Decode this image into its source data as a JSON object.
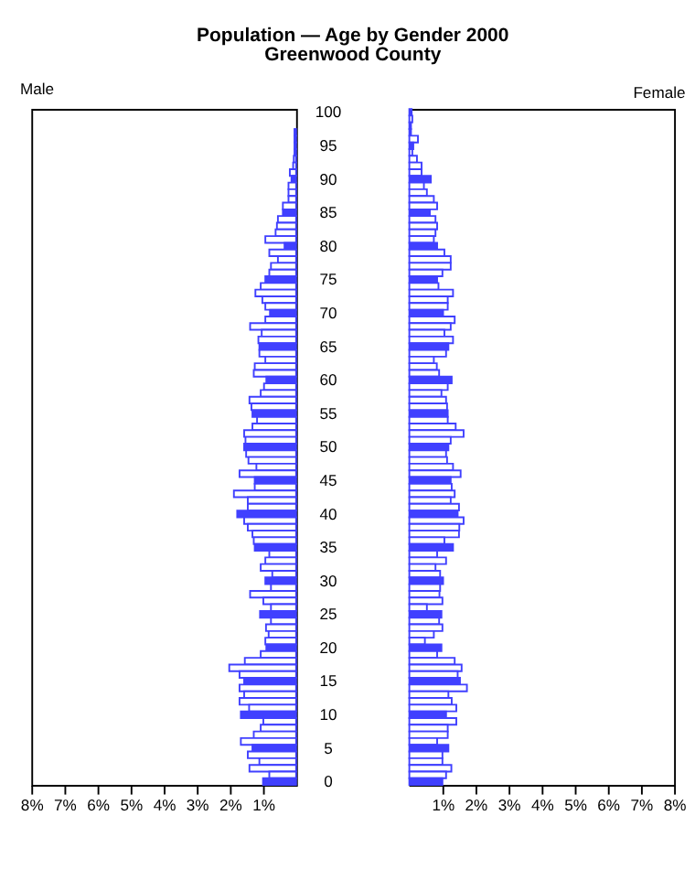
{
  "chart_data": [
    {
      "type": "bar",
      "title": "Population — Age by Gender 2000",
      "subtitle": "Greenwood County",
      "orientation": "horizontal",
      "categories": [
        "100",
        null,
        null,
        null,
        null,
        "95",
        null,
        null,
        null,
        null,
        "90",
        null,
        null,
        null,
        null,
        "85",
        null,
        null,
        null,
        null,
        "80",
        null,
        null,
        null,
        null,
        "75",
        null,
        null,
        null,
        null,
        "70",
        null,
        null,
        null,
        null,
        "65",
        null,
        null,
        null,
        null,
        "60",
        null,
        null,
        null,
        null,
        "55",
        null,
        null,
        null,
        null,
        "50",
        null,
        null,
        null,
        null,
        "45",
        null,
        null,
        null,
        null,
        "40",
        null,
        null,
        null,
        null,
        "35",
        null,
        null,
        null,
        null,
        "30",
        null,
        null,
        null,
        null,
        "25",
        null,
        null,
        null,
        null,
        "20",
        null,
        null,
        null,
        null,
        "15",
        null,
        null,
        null,
        null,
        "10",
        null,
        null,
        null,
        null,
        "5",
        null,
        null,
        null,
        null,
        "0"
      ],
      "series": [
        {
          "name": "Male",
          "color": "#4040ff",
          "colors": [
            "#4040ff",
            "#ffffff",
            "#ffffff",
            "#ffffff",
            "#ffffff",
            "#4040ff",
            "#ffffff",
            "#ffffff",
            "#ffffff",
            "#ffffff",
            "#4040ff",
            "#ffffff",
            "#ffffff",
            "#ffffff",
            "#ffffff",
            "#4040ff",
            "#ffffff",
            "#ffffff",
            "#ffffff",
            "#ffffff",
            "#4040ff",
            "#ffffff",
            "#ffffff",
            "#ffffff",
            "#ffffff",
            "#4040ff",
            "#ffffff",
            "#ffffff",
            "#ffffff",
            "#ffffff",
            "#4040ff",
            "#ffffff",
            "#ffffff",
            "#ffffff",
            "#ffffff",
            "#4040ff",
            "#ffffff",
            "#ffffff",
            "#ffffff",
            "#ffffff",
            "#4040ff",
            "#ffffff",
            "#ffffff",
            "#ffffff",
            "#ffffff",
            "#4040ff",
            "#ffffff",
            "#ffffff",
            "#ffffff",
            "#ffffff",
            "#4040ff",
            "#ffffff",
            "#ffffff",
            "#ffffff",
            "#ffffff",
            "#4040ff",
            "#ffffff",
            "#ffffff",
            "#ffffff",
            "#ffffff",
            "#4040ff",
            "#ffffff",
            "#ffffff",
            "#ffffff",
            "#ffffff",
            "#4040ff",
            "#ffffff",
            "#ffffff",
            "#ffffff",
            "#ffffff",
            "#4040ff",
            "#ffffff",
            "#ffffff",
            "#ffffff",
            "#ffffff",
            "#4040ff",
            "#ffffff",
            "#ffffff",
            "#ffffff",
            "#ffffff",
            "#4040ff",
            "#ffffff",
            "#ffffff",
            "#ffffff",
            "#ffffff",
            "#4040ff",
            "#ffffff",
            "#ffffff",
            "#ffffff",
            "#ffffff",
            "#4040ff",
            "#ffffff",
            "#ffffff",
            "#ffffff",
            "#ffffff",
            "#4040ff",
            "#ffffff",
            "#ffffff",
            "#ffffff",
            "#ffffff",
            "#4040ff"
          ],
          "values": [
            null,
            null,
            null,
            0.05,
            0.05,
            0.05,
            0.05,
            0.07,
            0.09,
            0.19,
            0.14,
            0.23,
            0.23,
            0.23,
            0.4,
            0.4,
            0.55,
            0.58,
            0.62,
            0.93,
            0.35,
            0.81,
            0.55,
            0.76,
            0.81,
            0.93,
            1.07,
            1.23,
            1.02,
            0.93,
            0.79,
            0.93,
            1.39,
            1.04,
            1.14,
            1.11,
            1.11,
            0.93,
            1.25,
            1.28,
            0.9,
            0.97,
            1.07,
            1.41,
            1.35,
            1.32,
            1.18,
            1.32,
            1.57,
            1.53,
            1.57,
            1.51,
            1.44,
            1.2,
            1.71,
            1.25,
            1.25,
            1.88,
            1.46,
            1.46,
            1.78,
            1.57,
            1.46,
            1.32,
            1.28,
            1.25,
            0.81,
            0.93,
            1.07,
            0.72,
            0.93,
            0.76,
            1.39,
            0.99,
            0.76,
            1.09,
            0.76,
            0.91,
            0.83,
            0.93,
            0.9,
            1.07,
            1.55,
            2.02,
            1.71,
            1.57,
            1.71,
            1.57,
            1.71,
            1.42,
            1.67,
            0.99,
            1.07,
            1.28,
            1.67,
            1.32,
            1.46,
            1.11,
            1.41,
            0.81,
            1.0
          ]
        }
      ],
      "xlim": [
        8,
        0
      ],
      "xticks": [
        {
          "value": 8,
          "label": "8%"
        },
        {
          "value": 7,
          "label": "7%"
        },
        {
          "value": 6,
          "label": "6%"
        },
        {
          "value": 5,
          "label": "5%"
        },
        {
          "value": 4,
          "label": "4%"
        },
        {
          "value": 3,
          "label": "3%"
        },
        {
          "value": 2,
          "label": "2%"
        },
        {
          "value": 1,
          "label": "1%"
        }
      ]
    },
    {
      "type": "bar",
      "orientation": "horizontal",
      "tick_labels": "x",
      "categories": [
        "100",
        null,
        null,
        null,
        null,
        "95",
        null,
        null,
        null,
        null,
        "90",
        null,
        null,
        null,
        null,
        "85",
        null,
        null,
        null,
        null,
        "80",
        null,
        null,
        null,
        null,
        "75",
        null,
        null,
        null,
        null,
        "70",
        null,
        null,
        null,
        null,
        "65",
        null,
        null,
        null,
        null,
        "60",
        null,
        null,
        null,
        null,
        "55",
        null,
        null,
        null,
        null,
        "50",
        null,
        null,
        null,
        null,
        "45",
        null,
        null,
        null,
        null,
        "40",
        null,
        null,
        null,
        null,
        "35",
        null,
        null,
        null,
        null,
        "30",
        null,
        null,
        null,
        null,
        "25",
        null,
        null,
        null,
        null,
        "20",
        null,
        null,
        null,
        null,
        "15",
        null,
        null,
        null,
        null,
        "10",
        null,
        null,
        null,
        null,
        "5",
        null,
        null,
        null,
        null,
        "0"
      ],
      "series": [
        {
          "name": "Female",
          "color": "#4040ff",
          "colors": [
            "#4040ff",
            "#ffffff",
            "#ffffff",
            "#ffffff",
            "#ffffff",
            "#4040ff",
            "#ffffff",
            "#ffffff",
            "#ffffff",
            "#ffffff",
            "#4040ff",
            "#ffffff",
            "#ffffff",
            "#ffffff",
            "#ffffff",
            "#4040ff",
            "#ffffff",
            "#ffffff",
            "#ffffff",
            "#ffffff",
            "#4040ff",
            "#ffffff",
            "#ffffff",
            "#ffffff",
            "#ffffff",
            "#4040ff",
            "#ffffff",
            "#ffffff",
            "#ffffff",
            "#ffffff",
            "#4040ff",
            "#ffffff",
            "#ffffff",
            "#ffffff",
            "#ffffff",
            "#4040ff",
            "#ffffff",
            "#ffffff",
            "#ffffff",
            "#ffffff",
            "#4040ff",
            "#ffffff",
            "#ffffff",
            "#ffffff",
            "#ffffff",
            "#4040ff",
            "#ffffff",
            "#ffffff",
            "#ffffff",
            "#ffffff",
            "#4040ff",
            "#ffffff",
            "#ffffff",
            "#ffffff",
            "#ffffff",
            "#4040ff",
            "#ffffff",
            "#ffffff",
            "#ffffff",
            "#ffffff",
            "#4040ff",
            "#ffffff",
            "#ffffff",
            "#ffffff",
            "#ffffff",
            "#4040ff",
            "#ffffff",
            "#ffffff",
            "#ffffff",
            "#ffffff",
            "#4040ff",
            "#ffffff",
            "#ffffff",
            "#ffffff",
            "#ffffff",
            "#4040ff",
            "#ffffff",
            "#ffffff",
            "#ffffff",
            "#ffffff",
            "#4040ff",
            "#ffffff",
            "#ffffff",
            "#ffffff",
            "#ffffff",
            "#4040ff",
            "#ffffff",
            "#ffffff",
            "#ffffff",
            "#ffffff",
            "#4040ff",
            "#ffffff",
            "#ffffff",
            "#ffffff",
            "#ffffff",
            "#4040ff",
            "#ffffff",
            "#ffffff",
            "#ffffff",
            "#ffffff",
            "#4040ff"
          ],
          "values": [
            0.07,
            0.09,
            0.05,
            0.05,
            0.26,
            0.12,
            0.09,
            0.23,
            0.37,
            0.37,
            0.65,
            0.44,
            0.53,
            0.74,
            0.84,
            0.62,
            0.79,
            0.84,
            0.79,
            0.74,
            0.84,
            1.06,
            1.25,
            1.25,
            1.0,
            0.84,
            0.88,
            1.32,
            1.16,
            1.16,
            1.02,
            1.37,
            1.25,
            1.06,
            1.32,
            1.18,
            1.11,
            0.74,
            0.83,
            0.9,
            1.28,
            1.16,
            0.97,
            1.11,
            1.14,
            1.16,
            1.16,
            1.4,
            1.64,
            1.25,
            1.18,
            1.11,
            1.14,
            1.32,
            1.55,
            1.25,
            1.28,
            1.37,
            1.25,
            1.5,
            1.46,
            1.64,
            1.51,
            1.5,
            1.06,
            1.32,
            0.84,
            1.11,
            0.79,
            0.93,
            1.02,
            0.93,
            0.91,
            1.0,
            0.53,
            0.97,
            0.9,
            1.0,
            0.74,
            0.47,
            0.97,
            0.84,
            1.37,
            1.58,
            1.46,
            1.53,
            1.74,
            1.18,
            1.28,
            1.42,
            1.11,
            1.42,
            1.16,
            1.16,
            0.84,
            1.18,
            1.0,
            1.0,
            1.27,
            1.11,
            1.0
          ]
        }
      ],
      "xlim": [
        0,
        8
      ],
      "xticks": [
        {
          "value": 1,
          "label": "1%"
        },
        {
          "value": 2,
          "label": "2%"
        },
        {
          "value": 3,
          "label": "3%"
        },
        {
          "value": 4,
          "label": "4%"
        },
        {
          "value": 5,
          "label": "5%"
        },
        {
          "value": 6,
          "label": "6%"
        },
        {
          "value": 7,
          "label": "7%"
        },
        {
          "value": 8,
          "label": "8%"
        }
      ]
    }
  ]
}
